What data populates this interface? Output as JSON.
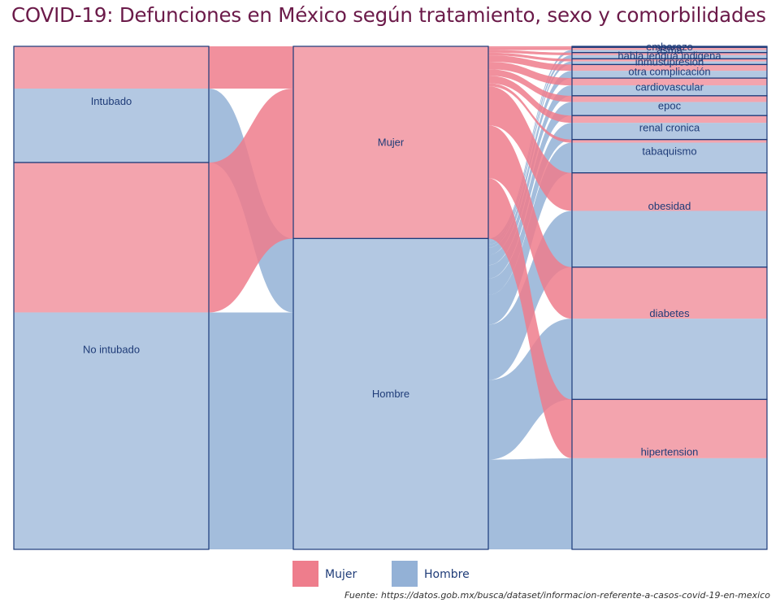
{
  "title": "COVID-19: Defunciones en México según tratamiento, sexo y comorbilidades",
  "source": "Fuente: https://datos.gob.mx/busca/dataset/informacion-referente-a-casos-covid-19-en-mexico",
  "colors": {
    "Mujer": "#ee7d8c",
    "Hombre": "#93b1d6",
    "border": "#1a3a7a",
    "text": "#1f3c78",
    "title": "#6b1a49"
  },
  "chart_data": {
    "type": "alluvial",
    "title": "COVID-19: Defunciones en México según tratamiento, sexo y comorbilidades",
    "legend": {
      "position": "bottom",
      "entries": [
        "Mujer",
        "Hombre"
      ]
    },
    "axes": [
      {
        "name": "tratamiento",
        "categories": [
          "Intubado",
          "No intubado"
        ]
      },
      {
        "name": "sexo",
        "categories": [
          "Mujer",
          "Hombre"
        ]
      },
      {
        "name": "comorbilidad",
        "categories": [
          "embarazo",
          "asma",
          "habla lengua indigena",
          "inmusupresión",
          "otra complicación",
          "cardiovascular",
          "epoc",
          "renal cronica",
          "tabaquismo",
          "obesidad",
          "diabetes",
          "hipertension"
        ]
      }
    ],
    "fill_by": "sexo",
    "strata": [
      {
        "axis": "tratamiento",
        "category": "Intubado",
        "Mujer": 84,
        "Hombre": 147
      },
      {
        "axis": "tratamiento",
        "category": "No intubado",
        "Mujer": 298,
        "Hombre": 471
      },
      {
        "axis": "comorbilidad",
        "category": "embarazo",
        "Mujer": 2,
        "Hombre": 0
      },
      {
        "axis": "comorbilidad",
        "category": "asma",
        "Mujer": 5,
        "Hombre": 5
      },
      {
        "axis": "comorbilidad",
        "category": "habla lengua indigena",
        "Mujer": 5,
        "Hombre": 7
      },
      {
        "axis": "comorbilidad",
        "category": "inmusupresión",
        "Mujer": 5,
        "Hombre": 6
      },
      {
        "axis": "comorbilidad",
        "category": "otra complicación",
        "Mujer": 12,
        "Hombre": 14
      },
      {
        "axis": "comorbilidad",
        "category": "cardiovascular",
        "Mujer": 14,
        "Hombre": 20
      },
      {
        "axis": "comorbilidad",
        "category": "epoc",
        "Mujer": 12,
        "Hombre": 26
      },
      {
        "axis": "comorbilidad",
        "category": "renal cronica",
        "Mujer": 14,
        "Hombre": 32
      },
      {
        "axis": "comorbilidad",
        "category": "tabaquismo",
        "Mujer": 6,
        "Hombre": 58
      },
      {
        "axis": "comorbilidad",
        "category": "obesidad",
        "Mujer": 73,
        "Hombre": 108
      },
      {
        "axis": "comorbilidad",
        "category": "diabetes",
        "Mujer": 99,
        "Hombre": 155
      },
      {
        "axis": "comorbilidad",
        "category": "hipertension",
        "Mujer": 113,
        "Hombre": 175
      }
    ]
  }
}
